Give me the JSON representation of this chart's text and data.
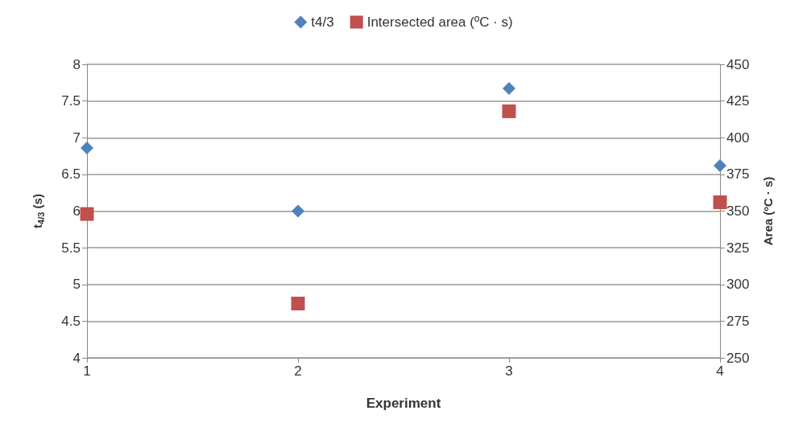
{
  "chart_data": {
    "type": "scatter",
    "xlabel": "Experiment",
    "ylabel": "t$_{4/3}$ (s)",
    "y2label": "Area (ºC · s)",
    "x": [
      1,
      2,
      3,
      4
    ],
    "series": [
      {
        "name": "t4/3",
        "color": "#4f81bd",
        "marker": "diamond",
        "values": [
          6.86,
          6.0,
          7.67,
          6.62
        ]
      },
      {
        "name": "Intersected area (ºC · s)",
        "color": "#c0504d",
        "marker": "square",
        "axis": "y2",
        "values": [
          348,
          287,
          418,
          356
        ]
      }
    ],
    "xlim": [
      1,
      4
    ],
    "xticks": [
      1,
      2,
      3,
      4
    ],
    "ylim": [
      4,
      8
    ],
    "yticks": [
      4,
      4.5,
      5,
      5.5,
      6,
      6.5,
      7,
      7.5,
      8
    ],
    "y2lim": [
      250,
      450
    ],
    "y2ticks": [
      250,
      275,
      300,
      325,
      350,
      375,
      400,
      425,
      450
    ],
    "grid": "y",
    "legend": "top"
  }
}
